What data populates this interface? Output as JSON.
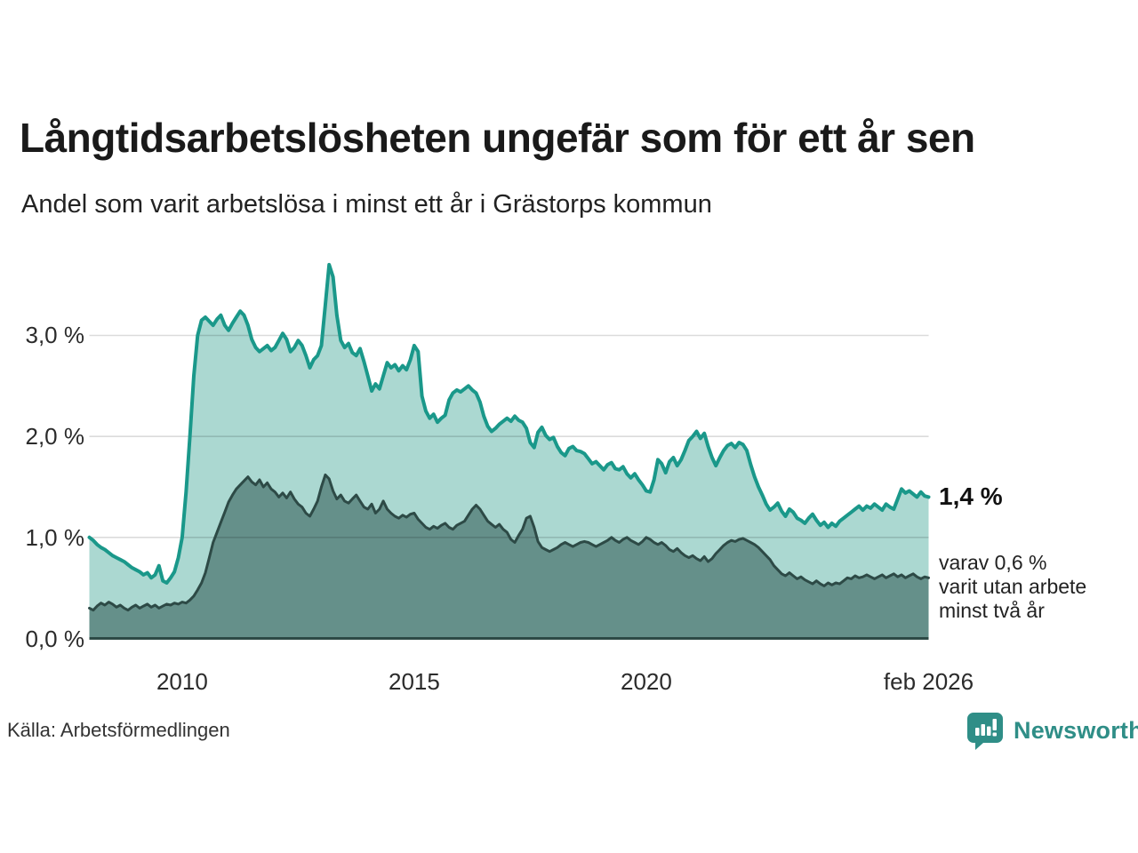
{
  "header": {
    "title": "Långtidsarbetslösheten ungefär som för ett år sen",
    "subtitle": "Andel som varit arbetslösa i minst ett år i Grästorps kommun"
  },
  "chart_data": {
    "type": "area",
    "title": "Långtidsarbetslösheten ungefär som för ett år sen",
    "subtitle": "Andel som varit arbetslösa i minst ett år i Grästorps kommun",
    "x_start": "2008-01",
    "x_end": "2026-02",
    "x_interval": "monthly",
    "ylim": [
      0,
      3.85
    ],
    "grid": true,
    "grid_values": [
      0,
      1,
      2,
      3
    ],
    "y_ticks": [
      {
        "value": 0,
        "label": "0,0 %"
      },
      {
        "value": 1,
        "label": "1,0 %"
      },
      {
        "value": 2,
        "label": "2,0 %"
      },
      {
        "value": 3,
        "label": "3,0 %"
      }
    ],
    "x_ticks": [
      {
        "index": 24,
        "label": "2010"
      },
      {
        "index": 84,
        "label": "2015"
      },
      {
        "index": 144,
        "label": "2020"
      },
      {
        "index": 217,
        "label": "feb 2026"
      }
    ],
    "series": [
      {
        "name": "Andel som varit arbetslösa i minst ett år",
        "fill": "#abd8d1",
        "line": "#1a988a",
        "line_width": 4,
        "end_value_label": "1,4 %",
        "values": [
          1.0,
          0.97,
          0.93,
          0.9,
          0.88,
          0.85,
          0.82,
          0.8,
          0.78,
          0.76,
          0.73,
          0.7,
          0.68,
          0.66,
          0.63,
          0.65,
          0.6,
          0.63,
          0.72,
          0.57,
          0.55,
          0.6,
          0.66,
          0.8,
          1.0,
          1.45,
          2.0,
          2.6,
          3.0,
          3.15,
          3.18,
          3.14,
          3.1,
          3.16,
          3.2,
          3.1,
          3.05,
          3.12,
          3.18,
          3.24,
          3.2,
          3.1,
          2.96,
          2.88,
          2.84,
          2.87,
          2.9,
          2.85,
          2.88,
          2.95,
          3.02,
          2.96,
          2.84,
          2.88,
          2.95,
          2.9,
          2.8,
          2.68,
          2.76,
          2.8,
          2.9,
          3.3,
          3.7,
          3.58,
          3.2,
          2.95,
          2.88,
          2.92,
          2.83,
          2.8,
          2.87,
          2.74,
          2.6,
          2.45,
          2.52,
          2.47,
          2.6,
          2.73,
          2.68,
          2.71,
          2.65,
          2.7,
          2.66,
          2.76,
          2.9,
          2.84,
          2.4,
          2.25,
          2.18,
          2.22,
          2.14,
          2.18,
          2.21,
          2.36,
          2.43,
          2.46,
          2.44,
          2.47,
          2.5,
          2.46,
          2.43,
          2.34,
          2.2,
          2.1,
          2.05,
          2.08,
          2.12,
          2.15,
          2.18,
          2.15,
          2.2,
          2.16,
          2.14,
          2.08,
          1.94,
          1.89,
          2.04,
          2.09,
          2.01,
          1.97,
          1.99,
          1.9,
          1.84,
          1.81,
          1.88,
          1.9,
          1.86,
          1.85,
          1.83,
          1.78,
          1.73,
          1.75,
          1.71,
          1.67,
          1.72,
          1.74,
          1.68,
          1.67,
          1.7,
          1.63,
          1.59,
          1.63,
          1.57,
          1.52,
          1.46,
          1.45,
          1.57,
          1.77,
          1.73,
          1.64,
          1.75,
          1.79,
          1.71,
          1.77,
          1.86,
          1.96,
          2.0,
          2.05,
          1.98,
          2.03,
          1.9,
          1.79,
          1.71,
          1.79,
          1.86,
          1.91,
          1.93,
          1.89,
          1.94,
          1.92,
          1.86,
          1.72,
          1.6,
          1.5,
          1.42,
          1.33,
          1.27,
          1.3,
          1.34,
          1.26,
          1.21,
          1.28,
          1.25,
          1.19,
          1.17,
          1.14,
          1.19,
          1.23,
          1.17,
          1.12,
          1.15,
          1.1,
          1.14,
          1.11,
          1.16,
          1.19,
          1.22,
          1.25,
          1.28,
          1.31,
          1.27,
          1.31,
          1.29,
          1.33,
          1.3,
          1.27,
          1.33,
          1.3,
          1.28,
          1.38,
          1.48,
          1.44,
          1.46,
          1.43,
          1.4,
          1.45,
          1.41,
          1.4
        ]
      },
      {
        "name": "varav varit utan arbete minst två år",
        "fill": "#65908a",
        "line": "#2d4a46",
        "line_width": 3,
        "end_value_label": "0,6 %",
        "values": [
          0.3,
          0.28,
          0.32,
          0.35,
          0.33,
          0.36,
          0.34,
          0.31,
          0.33,
          0.3,
          0.28,
          0.31,
          0.33,
          0.3,
          0.32,
          0.34,
          0.31,
          0.33,
          0.3,
          0.32,
          0.34,
          0.33,
          0.35,
          0.34,
          0.36,
          0.35,
          0.38,
          0.42,
          0.48,
          0.55,
          0.65,
          0.8,
          0.95,
          1.05,
          1.15,
          1.25,
          1.35,
          1.42,
          1.48,
          1.52,
          1.56,
          1.6,
          1.55,
          1.52,
          1.57,
          1.5,
          1.54,
          1.48,
          1.45,
          1.4,
          1.44,
          1.39,
          1.45,
          1.38,
          1.33,
          1.3,
          1.24,
          1.21,
          1.28,
          1.36,
          1.5,
          1.62,
          1.58,
          1.46,
          1.38,
          1.42,
          1.36,
          1.34,
          1.38,
          1.42,
          1.36,
          1.3,
          1.28,
          1.33,
          1.24,
          1.28,
          1.36,
          1.28,
          1.24,
          1.21,
          1.19,
          1.22,
          1.2,
          1.23,
          1.24,
          1.18,
          1.14,
          1.1,
          1.08,
          1.11,
          1.09,
          1.12,
          1.14,
          1.1,
          1.08,
          1.12,
          1.14,
          1.16,
          1.22,
          1.28,
          1.32,
          1.28,
          1.22,
          1.16,
          1.13,
          1.1,
          1.13,
          1.08,
          1.05,
          0.98,
          0.95,
          1.02,
          1.08,
          1.19,
          1.21,
          1.1,
          0.96,
          0.9,
          0.88,
          0.86,
          0.88,
          0.9,
          0.93,
          0.95,
          0.93,
          0.91,
          0.93,
          0.95,
          0.96,
          0.95,
          0.93,
          0.91,
          0.93,
          0.95,
          0.97,
          1.0,
          0.97,
          0.95,
          0.98,
          1.0,
          0.97,
          0.95,
          0.93,
          0.96,
          1.0,
          0.98,
          0.95,
          0.93,
          0.95,
          0.92,
          0.88,
          0.86,
          0.89,
          0.85,
          0.82,
          0.8,
          0.82,
          0.79,
          0.77,
          0.81,
          0.76,
          0.79,
          0.84,
          0.88,
          0.92,
          0.95,
          0.97,
          0.96,
          0.98,
          0.99,
          0.97,
          0.95,
          0.93,
          0.9,
          0.86,
          0.82,
          0.78,
          0.72,
          0.68,
          0.64,
          0.62,
          0.65,
          0.62,
          0.59,
          0.61,
          0.58,
          0.56,
          0.54,
          0.57,
          0.54,
          0.52,
          0.55,
          0.53,
          0.55,
          0.54,
          0.57,
          0.6,
          0.59,
          0.62,
          0.6,
          0.61,
          0.63,
          0.61,
          0.59,
          0.61,
          0.63,
          0.6,
          0.62,
          0.64,
          0.61,
          0.63,
          0.6,
          0.62,
          0.64,
          0.61,
          0.59,
          0.61,
          0.6
        ]
      }
    ],
    "annotations": {
      "end_value": "1,4 %",
      "end_note": "varav 0,6 %\nvarit utan arbete\nminst två år"
    },
    "legend_position": "none",
    "colors": {
      "grid": "rgba(0,0,0,0.14)",
      "background": "#ffffff",
      "brand_teal": "#2f8e87"
    }
  },
  "footer": {
    "source": "Källa: Arbetsförmedlingen",
    "brand": "Newsworthy"
  }
}
